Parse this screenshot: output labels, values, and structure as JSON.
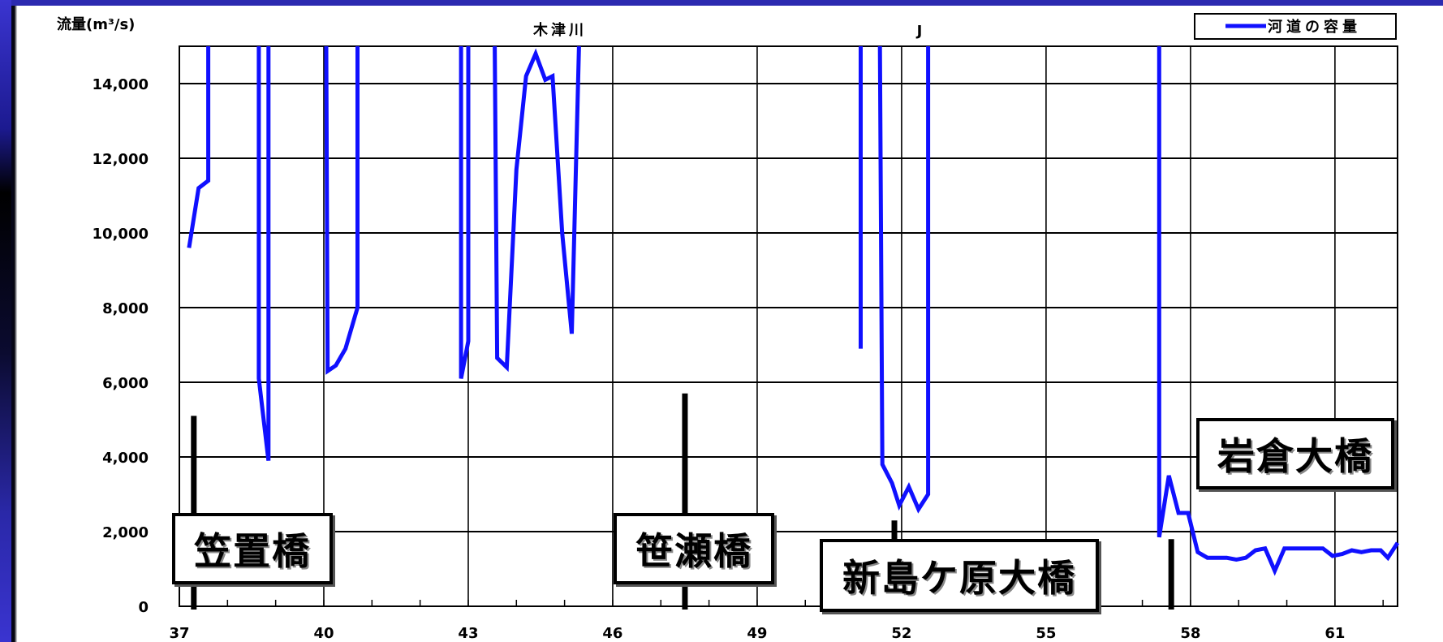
{
  "chart_data": {
    "type": "line",
    "ylabel": "流量(m³/s)",
    "top_label": "木津川",
    "top_mark": "J",
    "legend": {
      "label": "河道の容量",
      "color": "#1010ff",
      "placement": "top-right"
    },
    "xlim": [
      37,
      62.3
    ],
    "ylim": [
      0,
      15000
    ],
    "x_ticks": [
      37,
      40,
      43,
      46,
      49,
      52,
      55,
      58,
      61
    ],
    "y_ticks": [
      0,
      2000,
      4000,
      6000,
      8000,
      10000,
      12000,
      14000
    ],
    "y_tick_labels": [
      "0",
      "2,000",
      "4,000",
      "6,000",
      "8,000",
      "10,000",
      "12,000",
      "14,000"
    ],
    "grid": true,
    "series": [
      {
        "name": "河道の容量",
        "color": "#1010ff",
        "segments": [
          [
            [
              37.2,
              9600
            ],
            [
              37.4,
              11200
            ],
            [
              37.6,
              11400
            ],
            [
              37.6,
              15000
            ]
          ],
          [
            [
              38.65,
              15000
            ],
            [
              38.65,
              6100
            ],
            [
              38.85,
              3900
            ],
            [
              38.85,
              15000
            ]
          ],
          [
            [
              40.05,
              15000
            ],
            [
              40.08,
              6300
            ],
            [
              40.25,
              6450
            ],
            [
              40.45,
              6900
            ],
            [
              40.7,
              8000
            ],
            [
              40.7,
              15000
            ]
          ],
          [
            [
              42.85,
              15000
            ],
            [
              42.85,
              6100
            ],
            [
              43.0,
              7100
            ],
            [
              43.0,
              15000
            ]
          ],
          [
            [
              43.55,
              15000
            ],
            [
              43.6,
              6650
            ],
            [
              43.8,
              6400
            ],
            [
              44.0,
              11700
            ],
            [
              44.2,
              14200
            ],
            [
              44.4,
              14800
            ],
            [
              44.6,
              14100
            ],
            [
              44.75,
              14200
            ],
            [
              44.95,
              10000
            ],
            [
              45.15,
              7300
            ],
            [
              45.3,
              15000
            ]
          ],
          [
            [
              51.15,
              15000
            ],
            [
              51.15,
              6900
            ]
          ],
          [
            [
              51.55,
              15000
            ],
            [
              51.6,
              3800
            ],
            [
              51.8,
              3300
            ],
            [
              51.95,
              2700
            ],
            [
              52.15,
              3200
            ],
            [
              52.35,
              2600
            ],
            [
              52.55,
              3000
            ],
            [
              52.55,
              15000
            ]
          ],
          [
            [
              57.35,
              15000
            ],
            [
              57.35,
              1850
            ],
            [
              57.55,
              3500
            ],
            [
              57.75,
              2500
            ],
            [
              57.95,
              2500
            ],
            [
              58.15,
              1450
            ],
            [
              58.35,
              1300
            ],
            [
              58.75,
              1300
            ],
            [
              58.95,
              1250
            ],
            [
              59.15,
              1300
            ],
            [
              59.35,
              1500
            ],
            [
              59.55,
              1550
            ],
            [
              59.75,
              950
            ],
            [
              59.95,
              1550
            ],
            [
              60.35,
              1550
            ],
            [
              60.75,
              1550
            ],
            [
              60.95,
              1350
            ],
            [
              61.15,
              1400
            ],
            [
              61.35,
              1500
            ],
            [
              61.55,
              1450
            ],
            [
              61.75,
              1500
            ],
            [
              61.95,
              1500
            ],
            [
              62.1,
              1300
            ],
            [
              62.3,
              1700
            ]
          ]
        ]
      }
    ],
    "annotations": [
      {
        "label": "笠置橋",
        "x": 37.3,
        "marker_to": 5100
      },
      {
        "label": "笹瀬橋",
        "x": 47.5,
        "marker_to": 5700
      },
      {
        "label": "新島ケ原大橋",
        "x": 51.85,
        "marker_to": 2300
      },
      {
        "label": "岩倉大橋",
        "x": 57.6,
        "marker_to": 1800
      }
    ]
  }
}
